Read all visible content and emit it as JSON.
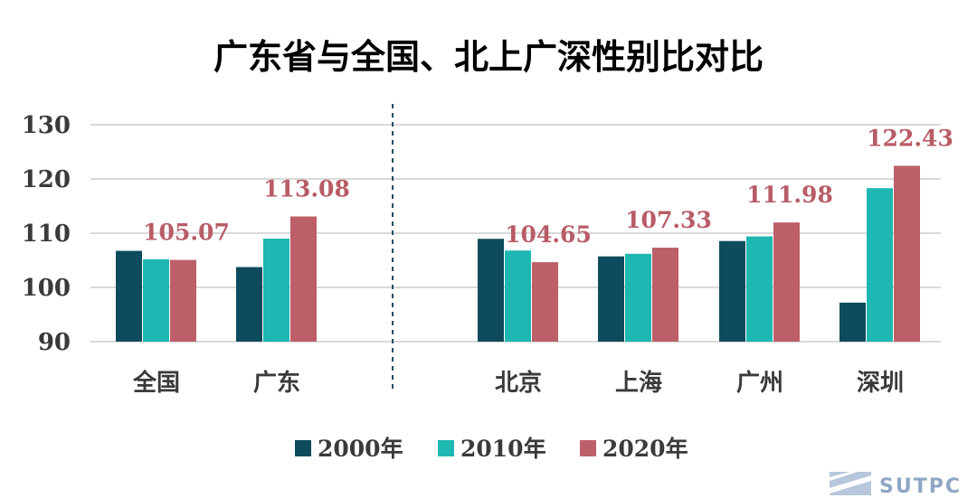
{
  "chart_data": {
    "type": "bar",
    "title": "广东省与全国、北上广深性别比对比",
    "categories": [
      "全国",
      "广东",
      "北京",
      "上海",
      "广州",
      "深圳"
    ],
    "groups": [
      [
        "全国",
        "广东"
      ],
      [
        "北京",
        "上海",
        "广州",
        "深圳"
      ]
    ],
    "series": [
      {
        "name": "2000年",
        "color": "#0e4b5c",
        "values": [
          106.74,
          103.75,
          108.96,
          105.72,
          108.55,
          97.19
        ]
      },
      {
        "name": "2010年",
        "color": "#1eb7b1",
        "values": [
          105.2,
          109.0,
          106.8,
          106.2,
          109.4,
          118.3
        ]
      },
      {
        "name": "2020年",
        "color": "#bd5f69",
        "values": [
          105.07,
          113.08,
          104.65,
          107.33,
          111.98,
          122.43
        ]
      }
    ],
    "data_labels": [
      "105.07",
      "113.08",
      "104.65",
      "107.33",
      "111.98",
      "122.43"
    ],
    "yticks": [
      "90",
      "100",
      "110",
      "120",
      "130"
    ],
    "ylim": [
      90,
      130
    ],
    "grid": true,
    "legend_position": "bottom"
  },
  "watermark": {
    "text": "SUTPC",
    "icon": "sutpc-logo-icon",
    "color": "#8ea6c4"
  }
}
